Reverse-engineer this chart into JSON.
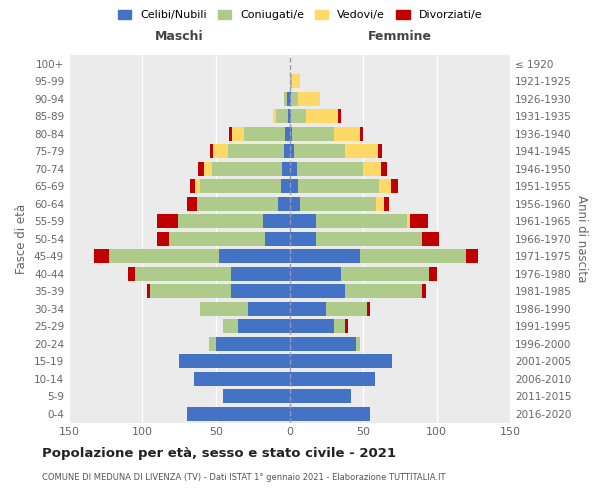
{
  "age_groups": [
    "0-4",
    "5-9",
    "10-14",
    "15-19",
    "20-24",
    "25-29",
    "30-34",
    "35-39",
    "40-44",
    "45-49",
    "50-54",
    "55-59",
    "60-64",
    "65-69",
    "70-74",
    "75-79",
    "80-84",
    "85-89",
    "90-94",
    "95-99",
    "100+"
  ],
  "birth_years": [
    "2016-2020",
    "2011-2015",
    "2006-2010",
    "2001-2005",
    "1996-2000",
    "1991-1995",
    "1986-1990",
    "1981-1985",
    "1976-1980",
    "1971-1975",
    "1966-1970",
    "1961-1965",
    "1956-1960",
    "1951-1955",
    "1946-1950",
    "1941-1945",
    "1936-1940",
    "1931-1935",
    "1926-1930",
    "1921-1925",
    "≤ 1920"
  ],
  "maschi": {
    "celibi": [
      70,
      45,
      65,
      75,
      50,
      35,
      28,
      40,
      40,
      48,
      17,
      18,
      8,
      6,
      5,
      4,
      3,
      1,
      2,
      0,
      0
    ],
    "coniugati": [
      0,
      0,
      0,
      0,
      5,
      10,
      33,
      55,
      65,
      75,
      65,
      58,
      55,
      55,
      48,
      38,
      28,
      8,
      2,
      0,
      0
    ],
    "vedovi": [
      0,
      0,
      0,
      0,
      0,
      0,
      0,
      0,
      0,
      0,
      0,
      0,
      0,
      3,
      5,
      10,
      8,
      2,
      0,
      0,
      0
    ],
    "divorziati": [
      0,
      0,
      0,
      0,
      0,
      0,
      0,
      2,
      5,
      10,
      8,
      14,
      7,
      4,
      4,
      2,
      2,
      0,
      0,
      0,
      0
    ]
  },
  "femmine": {
    "nubili": [
      55,
      42,
      58,
      70,
      45,
      30,
      25,
      38,
      35,
      48,
      18,
      18,
      7,
      6,
      5,
      3,
      2,
      1,
      1,
      0,
      0
    ],
    "coniugate": [
      0,
      0,
      0,
      0,
      3,
      8,
      28,
      52,
      60,
      72,
      72,
      62,
      52,
      55,
      45,
      35,
      28,
      10,
      5,
      2,
      0
    ],
    "vedove": [
      0,
      0,
      0,
      0,
      0,
      0,
      0,
      0,
      0,
      0,
      0,
      2,
      5,
      8,
      12,
      22,
      18,
      22,
      15,
      5,
      0
    ],
    "divorziate": [
      0,
      0,
      0,
      0,
      0,
      2,
      2,
      3,
      5,
      8,
      12,
      12,
      4,
      5,
      4,
      3,
      2,
      2,
      0,
      0,
      0
    ]
  },
  "colors": {
    "celibi_nubili": "#4472C4",
    "coniugati": "#AECB8B",
    "vedovi": "#FFD966",
    "divorziati": "#C00000"
  },
  "title": "Popolazione per età, sesso e stato civile - 2021",
  "subtitle": "COMUNE DI MEDUNA DI LIVENZA (TV) - Dati ISTAT 1° gennaio 2021 - Elaborazione TUTTITALIA.IT",
  "xlabel_maschi": "Maschi",
  "xlabel_femmine": "Femmine",
  "ylabel_left": "Fasce di età",
  "ylabel_right": "Anni di nascita",
  "xlim": 150,
  "legend_labels": [
    "Celibi/Nubili",
    "Coniugati/e",
    "Vedovi/e",
    "Divorziati/e"
  ],
  "bg_color": "#ebebeb"
}
